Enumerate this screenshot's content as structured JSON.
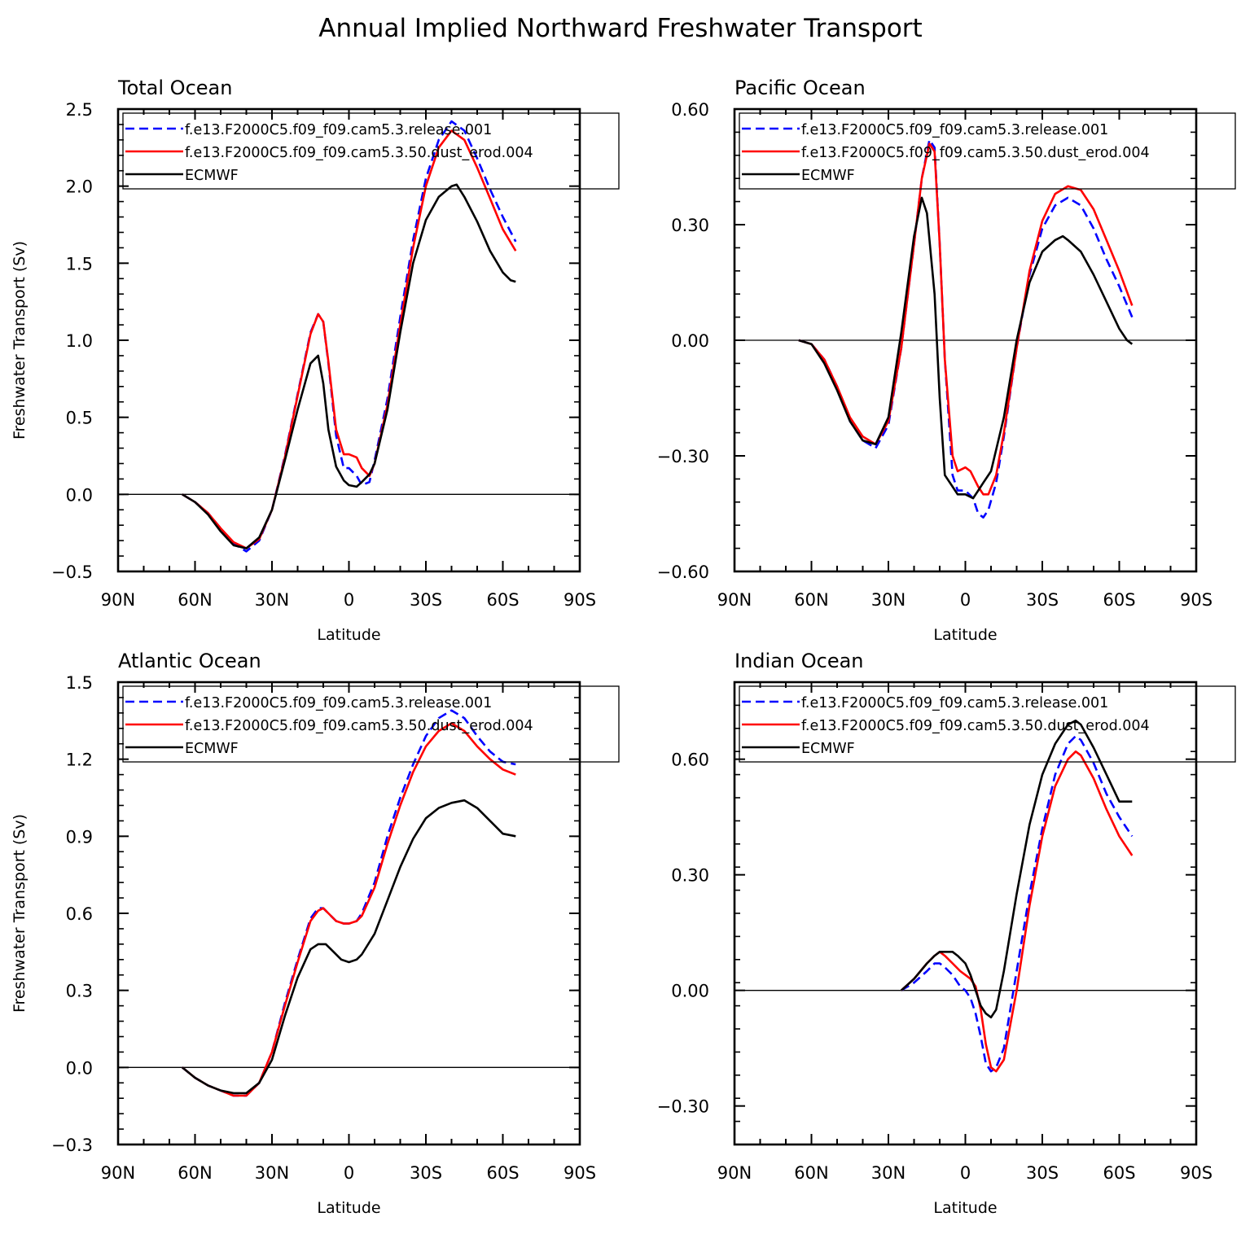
{
  "title": "Annual Implied Northward Freshwater Transport",
  "colors": {
    "release": "#0000ff",
    "dust": "#ff0000",
    "ecmwf": "#000000"
  },
  "chart_data": [
    {
      "type": "line",
      "title": "Total Ocean",
      "xlabel": "Latitude",
      "ylabel": "Freshwater Transport (Sv)",
      "x_axis": "latitude, north positive; plotted from 90N (left) to 90S (right)",
      "xticks": [
        "90N",
        "60N",
        "30N",
        "0",
        "30S",
        "60S",
        "90S"
      ],
      "xlim": [
        90,
        -90
      ],
      "ylim": [
        -0.5,
        2.5
      ],
      "yticks": [
        "-0.5",
        "0.0",
        "0.5",
        "1.0",
        "1.5",
        "2.0",
        "2.5"
      ],
      "reference_line": 0,
      "legend_position": "top",
      "series": [
        {
          "name": "f.e13.F2000C5.f09_f09.cam5.3.release.001",
          "style": "dashed",
          "color": "#0000ff",
          "x": [
            65,
            60,
            55,
            50,
            45,
            40,
            35,
            30,
            25,
            20,
            15,
            12,
            10,
            8,
            5,
            2,
            0,
            -3,
            -5,
            -8,
            -10,
            -15,
            -20,
            -25,
            -30,
            -35,
            -40,
            -45,
            -50,
            -55,
            -60,
            -65
          ],
          "y": [
            0,
            -0.05,
            -0.12,
            -0.22,
            -0.32,
            -0.37,
            -0.3,
            -0.1,
            0.25,
            0.65,
            1.05,
            1.17,
            1.12,
            0.85,
            0.38,
            0.17,
            0.17,
            0.12,
            0.06,
            0.08,
            0.22,
            0.62,
            1.15,
            1.65,
            2.05,
            2.3,
            2.42,
            2.36,
            2.18,
            1.98,
            1.8,
            1.64
          ]
        },
        {
          "name": "f.e13.F2000C5.f09_f09.cam5.3.50.dust_erod.004",
          "style": "solid",
          "color": "#ff0000",
          "x": [
            65,
            60,
            55,
            50,
            45,
            40,
            35,
            30,
            25,
            20,
            15,
            12,
            10,
            8,
            5,
            2,
            0,
            -3,
            -5,
            -8,
            -10,
            -15,
            -20,
            -25,
            -30,
            -35,
            -40,
            -45,
            -50,
            -55,
            -60,
            -65
          ],
          "y": [
            0,
            -0.05,
            -0.12,
            -0.22,
            -0.31,
            -0.35,
            -0.29,
            -0.1,
            0.24,
            0.64,
            1.04,
            1.17,
            1.12,
            0.86,
            0.42,
            0.26,
            0.26,
            0.24,
            0.17,
            0.12,
            0.2,
            0.58,
            1.1,
            1.6,
            2.0,
            2.25,
            2.36,
            2.3,
            2.12,
            1.92,
            1.72,
            1.58
          ]
        },
        {
          "name": "ECMWF",
          "style": "solid",
          "color": "#000000",
          "x": [
            65,
            60,
            55,
            50,
            45,
            40,
            35,
            30,
            25,
            20,
            15,
            12,
            10,
            8,
            5,
            2,
            0,
            -3,
            -5,
            -8,
            -10,
            -15,
            -20,
            -25,
            -30,
            -35,
            -40,
            -42,
            -45,
            -50,
            -55,
            -60,
            -63,
            -65
          ],
          "y": [
            0,
            -0.05,
            -0.13,
            -0.24,
            -0.33,
            -0.35,
            -0.28,
            -0.1,
            0.22,
            0.55,
            0.85,
            0.9,
            0.72,
            0.42,
            0.18,
            0.09,
            0.06,
            0.05,
            0.08,
            0.13,
            0.2,
            0.55,
            1.05,
            1.5,
            1.78,
            1.93,
            2.0,
            2.01,
            1.93,
            1.77,
            1.58,
            1.44,
            1.39,
            1.38
          ]
        }
      ]
    },
    {
      "type": "line",
      "title": "Pacific Ocean",
      "xlabel": "Latitude",
      "ylabel": "",
      "x_axis": "latitude, north positive; plotted from 90N (left) to 90S (right)",
      "xticks": [
        "90N",
        "60N",
        "30N",
        "0",
        "30S",
        "60S",
        "90S"
      ],
      "xlim": [
        90,
        -90
      ],
      "ylim": [
        -0.6,
        0.6
      ],
      "yticks": [
        "-0.60",
        "-0.30",
        "0.00",
        "0.30",
        "0.60"
      ],
      "reference_line": 0,
      "legend_position": "top",
      "series": [
        {
          "name": "f.e13.F2000C5.f09_f09.cam5.3.release.001",
          "style": "dashed",
          "color": "#0000ff",
          "x": [
            65,
            60,
            55,
            50,
            45,
            40,
            35,
            30,
            25,
            20,
            17,
            14,
            12,
            10,
            8,
            5,
            3,
            0,
            -3,
            -5,
            -7,
            -9,
            -12,
            -15,
            -20,
            -25,
            -30,
            -35,
            -40,
            -45,
            -50,
            -55,
            -60,
            -65
          ],
          "y": [
            0,
            -0.01,
            -0.05,
            -0.12,
            -0.21,
            -0.26,
            -0.28,
            -0.22,
            -0.02,
            0.25,
            0.42,
            0.52,
            0.5,
            0.25,
            -0.05,
            -0.35,
            -0.39,
            -0.39,
            -0.41,
            -0.45,
            -0.46,
            -0.44,
            -0.37,
            -0.25,
            -0.02,
            0.17,
            0.29,
            0.35,
            0.37,
            0.35,
            0.29,
            0.21,
            0.14,
            0.06
          ]
        },
        {
          "name": "f.e13.F2000C5.f09_f09.cam5.3.50.dust_erod.004",
          "style": "solid",
          "color": "#ff0000",
          "x": [
            65,
            60,
            55,
            50,
            45,
            40,
            35,
            30,
            25,
            20,
            17,
            14,
            12,
            10,
            8,
            5,
            3,
            0,
            -2,
            -5,
            -7,
            -9,
            -12,
            -15,
            -20,
            -25,
            -30,
            -35,
            -40,
            -45,
            -50,
            -55,
            -60,
            -65
          ],
          "y": [
            0,
            -0.01,
            -0.05,
            -0.12,
            -0.2,
            -0.25,
            -0.27,
            -0.21,
            -0.02,
            0.25,
            0.42,
            0.51,
            0.49,
            0.25,
            -0.05,
            -0.3,
            -0.34,
            -0.33,
            -0.34,
            -0.38,
            -0.4,
            -0.4,
            -0.35,
            -0.24,
            -0.02,
            0.18,
            0.31,
            0.38,
            0.4,
            0.39,
            0.34,
            0.26,
            0.18,
            0.09
          ]
        },
        {
          "name": "ECMWF",
          "style": "solid",
          "color": "#000000",
          "x": [
            65,
            60,
            55,
            50,
            45,
            40,
            35,
            30,
            25,
            20,
            17,
            15,
            12,
            10,
            8,
            5,
            3,
            0,
            -3,
            -5,
            -7,
            -10,
            -15,
            -20,
            -25,
            -30,
            -35,
            -38,
            -40,
            -45,
            -50,
            -55,
            -60,
            -63,
            -65
          ],
          "y": [
            0,
            -0.01,
            -0.06,
            -0.13,
            -0.21,
            -0.26,
            -0.27,
            -0.2,
            0.02,
            0.27,
            0.37,
            0.33,
            0.12,
            -0.15,
            -0.35,
            -0.38,
            -0.4,
            -0.4,
            -0.41,
            -0.39,
            -0.37,
            -0.34,
            -0.2,
            0.0,
            0.15,
            0.23,
            0.26,
            0.27,
            0.26,
            0.23,
            0.17,
            0.1,
            0.03,
            0.0,
            -0.01
          ]
        }
      ]
    },
    {
      "type": "line",
      "title": "Atlantic Ocean",
      "xlabel": "Latitude",
      "ylabel": "Freshwater Transport (Sv)",
      "x_axis": "latitude, north positive; plotted from 90N (left) to 90S (right)",
      "xticks": [
        "90N",
        "60N",
        "30N",
        "0",
        "30S",
        "60S",
        "90S"
      ],
      "xlim": [
        90,
        -90
      ],
      "ylim": [
        -0.3,
        1.5
      ],
      "yticks": [
        "-0.3",
        "0.0",
        "0.3",
        "0.6",
        "0.9",
        "1.2",
        "1.5"
      ],
      "reference_line": 0,
      "legend_position": "top",
      "series": [
        {
          "name": "f.e13.F2000C5.f09_f09.cam5.3.release.001",
          "style": "dashed",
          "color": "#0000ff",
          "x": [
            65,
            60,
            55,
            50,
            45,
            40,
            35,
            30,
            25,
            20,
            15,
            12,
            10,
            8,
            5,
            2,
            0,
            -3,
            -5,
            -10,
            -15,
            -20,
            -25,
            -30,
            -35,
            -40,
            -45,
            -50,
            -55,
            -60,
            -65
          ],
          "y": [
            0,
            -0.04,
            -0.07,
            -0.09,
            -0.11,
            -0.11,
            -0.06,
            0.06,
            0.25,
            0.42,
            0.58,
            0.62,
            0.62,
            0.6,
            0.57,
            0.56,
            0.56,
            0.57,
            0.6,
            0.72,
            0.9,
            1.05,
            1.18,
            1.29,
            1.36,
            1.39,
            1.36,
            1.29,
            1.23,
            1.19,
            1.18
          ]
        },
        {
          "name": "f.e13.F2000C5.f09_f09.cam5.3.50.dust_erod.004",
          "style": "solid",
          "color": "#ff0000",
          "x": [
            65,
            60,
            55,
            50,
            45,
            40,
            35,
            30,
            25,
            20,
            15,
            12,
            10,
            8,
            5,
            2,
            0,
            -3,
            -5,
            -10,
            -15,
            -20,
            -25,
            -30,
            -35,
            -40,
            -45,
            -50,
            -55,
            -60,
            -65
          ],
          "y": [
            0,
            -0.04,
            -0.07,
            -0.09,
            -0.11,
            -0.11,
            -0.06,
            0.06,
            0.24,
            0.41,
            0.57,
            0.61,
            0.62,
            0.6,
            0.57,
            0.56,
            0.56,
            0.57,
            0.59,
            0.7,
            0.87,
            1.02,
            1.15,
            1.25,
            1.31,
            1.34,
            1.31,
            1.25,
            1.2,
            1.16,
            1.14
          ]
        },
        {
          "name": "ECMWF",
          "style": "solid",
          "color": "#000000",
          "x": [
            65,
            60,
            55,
            50,
            45,
            40,
            35,
            30,
            25,
            20,
            15,
            12,
            9,
            6,
            3,
            0,
            -3,
            -5,
            -10,
            -15,
            -20,
            -25,
            -30,
            -35,
            -40,
            -45,
            -50,
            -55,
            -60,
            -65
          ],
          "y": [
            0,
            -0.04,
            -0.07,
            -0.09,
            -0.1,
            -0.1,
            -0.06,
            0.03,
            0.2,
            0.35,
            0.46,
            0.48,
            0.48,
            0.45,
            0.42,
            0.41,
            0.42,
            0.44,
            0.52,
            0.65,
            0.78,
            0.89,
            0.97,
            1.01,
            1.03,
            1.04,
            1.01,
            0.96,
            0.91,
            0.9
          ]
        }
      ]
    },
    {
      "type": "line",
      "title": "Indian Ocean",
      "xlabel": "Latitude",
      "ylabel": "",
      "x_axis": "latitude, north positive; plotted from 90N (left) to 90S (right)",
      "xticks": [
        "90N",
        "60N",
        "30N",
        "0",
        "30S",
        "60S",
        "90S"
      ],
      "xlim": [
        90,
        -90
      ],
      "ylim": [
        -0.4,
        0.8
      ],
      "yticks": [
        "-0.30",
        "0.00",
        "0.30",
        "0.60"
      ],
      "reference_line": 0,
      "legend_position": "top",
      "series": [
        {
          "name": "f.e13.F2000C5.f09_f09.cam5.3.release.001",
          "style": "dashed",
          "color": "#0000ff",
          "x": [
            25,
            20,
            15,
            12,
            10,
            8,
            5,
            2,
            0,
            -2,
            -4,
            -6,
            -8,
            -10,
            -12,
            -15,
            -20,
            -25,
            -30,
            -35,
            -40,
            -43,
            -45,
            -50,
            -55,
            -60,
            -65
          ],
          "y": [
            0,
            0.02,
            0.05,
            0.07,
            0.07,
            0.06,
            0.04,
            0.01,
            0.0,
            -0.02,
            -0.06,
            -0.12,
            -0.19,
            -0.21,
            -0.2,
            -0.15,
            0.05,
            0.25,
            0.42,
            0.56,
            0.64,
            0.66,
            0.65,
            0.59,
            0.51,
            0.45,
            0.4
          ]
        },
        {
          "name": "f.e13.F2000C5.f09_f09.cam5.3.50.dust_erod.004",
          "style": "solid",
          "color": "#ff0000",
          "x": [
            25,
            20,
            15,
            12,
            10,
            8,
            5,
            2,
            0,
            -2,
            -4,
            -6,
            -8,
            -10,
            -12,
            -15,
            -20,
            -25,
            -30,
            -35,
            -40,
            -43,
            -45,
            -50,
            -55,
            -60,
            -65
          ],
          "y": [
            0,
            0.03,
            0.07,
            0.09,
            0.1,
            0.09,
            0.07,
            0.05,
            0.04,
            0.03,
            0.01,
            -0.05,
            -0.14,
            -0.2,
            -0.21,
            -0.18,
            0.0,
            0.22,
            0.4,
            0.53,
            0.6,
            0.62,
            0.61,
            0.55,
            0.47,
            0.4,
            0.35
          ]
        },
        {
          "name": "ECMWF",
          "style": "solid",
          "color": "#000000",
          "x": [
            25,
            20,
            15,
            12,
            10,
            8,
            5,
            3,
            0,
            -2,
            -4,
            -6,
            -8,
            -10,
            -12,
            -15,
            -20,
            -25,
            -30,
            -35,
            -40,
            -43,
            -45,
            -50,
            -55,
            -60,
            -65
          ],
          "y": [
            0,
            0.03,
            0.07,
            0.09,
            0.1,
            0.1,
            0.1,
            0.09,
            0.07,
            0.04,
            0.0,
            -0.04,
            -0.06,
            -0.07,
            -0.05,
            0.05,
            0.25,
            0.43,
            0.56,
            0.64,
            0.69,
            0.7,
            0.69,
            0.63,
            0.56,
            0.49,
            0.49
          ]
        }
      ]
    }
  ]
}
